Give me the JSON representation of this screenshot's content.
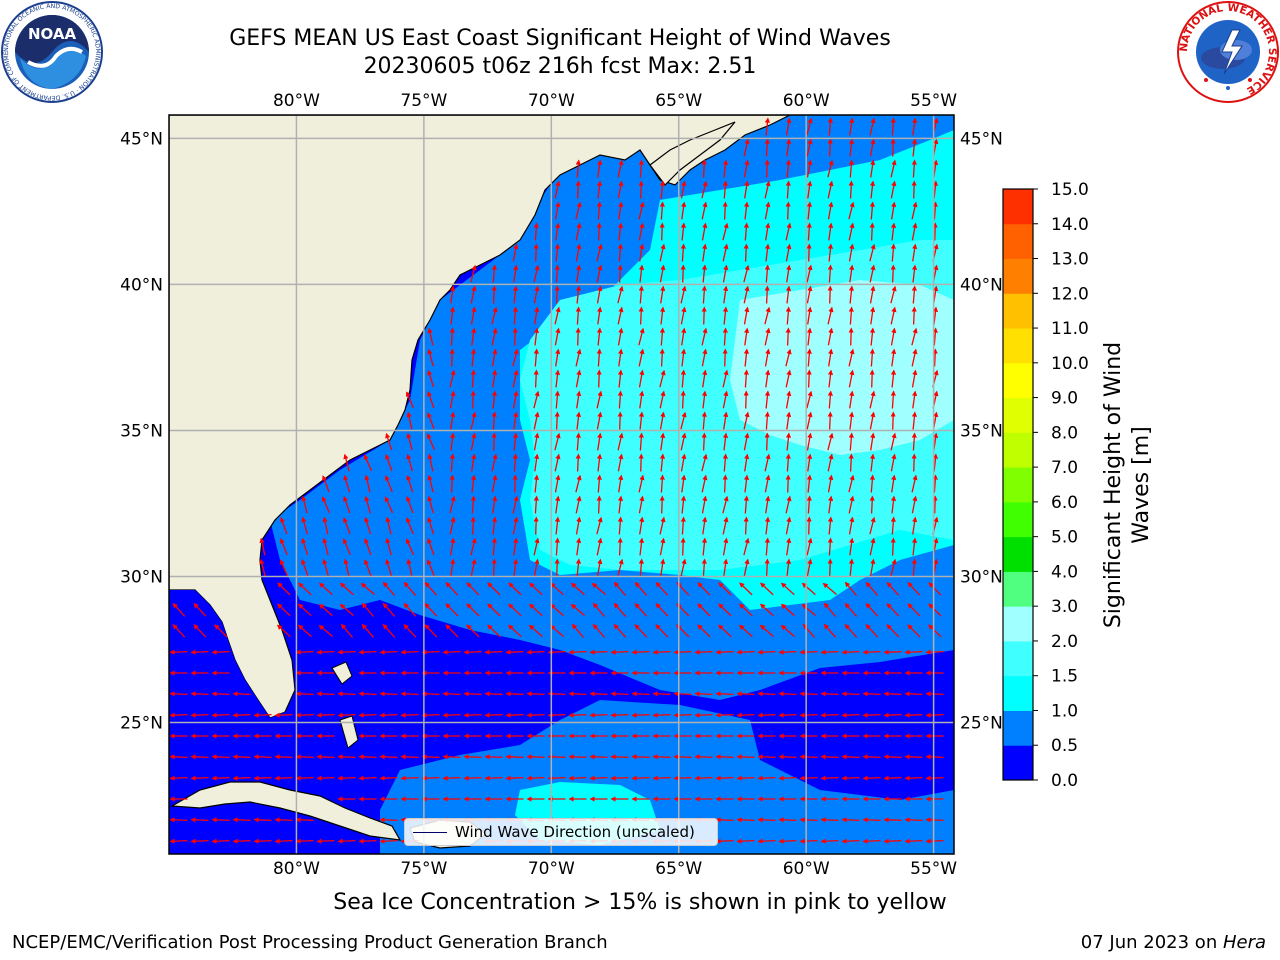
{
  "header": {
    "title_line1": "GEFS MEAN US East Coast Significant Height of Wind Waves",
    "title_line2": "20230605 t06z 216h fcst   Max: 2.51"
  },
  "logos": {
    "noaa_text": "NOAA",
    "noaa_ring_text": "NATIONAL OCEANIC AND ATMOSPHERIC ADMINISTRATION · U.S. DEPARTMENT OF COMMERCE",
    "nws_ring_text": "NATIONAL WEATHER SERVICE"
  },
  "map": {
    "lon_labels": [
      "80°W",
      "75°W",
      "70°W",
      "65°W",
      "60°W",
      "55°W"
    ],
    "lon_values": [
      -80,
      -75,
      -70,
      -65,
      -60,
      -55
    ],
    "lat_labels": [
      "45°N",
      "40°N",
      "35°N",
      "30°N",
      "25°N"
    ],
    "lat_values": [
      45,
      40,
      35,
      30,
      25
    ],
    "extent": {
      "lon_min": -85,
      "lon_max": -54.2,
      "lat_min": 20.5,
      "lat_max": 45.8
    },
    "legend_label": "Wind Wave Direction (unscaled)",
    "land_color": "#efefdc",
    "arrow_color": "#ff0000"
  },
  "colorbar": {
    "title_line1": "Significant Height of Wind",
    "title_line2": "Waves [m]",
    "tick_labels": [
      "0.0",
      "0.5",
      "1.0",
      "1.5",
      "2.0",
      "3.0",
      "4.0",
      "5.0",
      "6.0",
      "7.0",
      "8.0",
      "9.0",
      "10.0",
      "11.0",
      "12.0",
      "13.0",
      "14.0",
      "15.0"
    ],
    "colors": [
      "#0000ff",
      "#0080ff",
      "#00ffff",
      "#40ffff",
      "#a0ffff",
      "#50ff80",
      "#00e000",
      "#40ff00",
      "#80ff00",
      "#c0ff00",
      "#e0ff00",
      "#ffff00",
      "#ffe000",
      "#ffc000",
      "#ff8000",
      "#ff6000",
      "#ff3000"
    ]
  },
  "caption": "Sea Ice Concentration > 15% is shown in pink to yellow",
  "footer": {
    "left": "NCEP/EMC/Verification Post Processing Product Generation Branch",
    "right_prefix": "07 Jun 2023 on ",
    "right_host": "Hera"
  }
}
